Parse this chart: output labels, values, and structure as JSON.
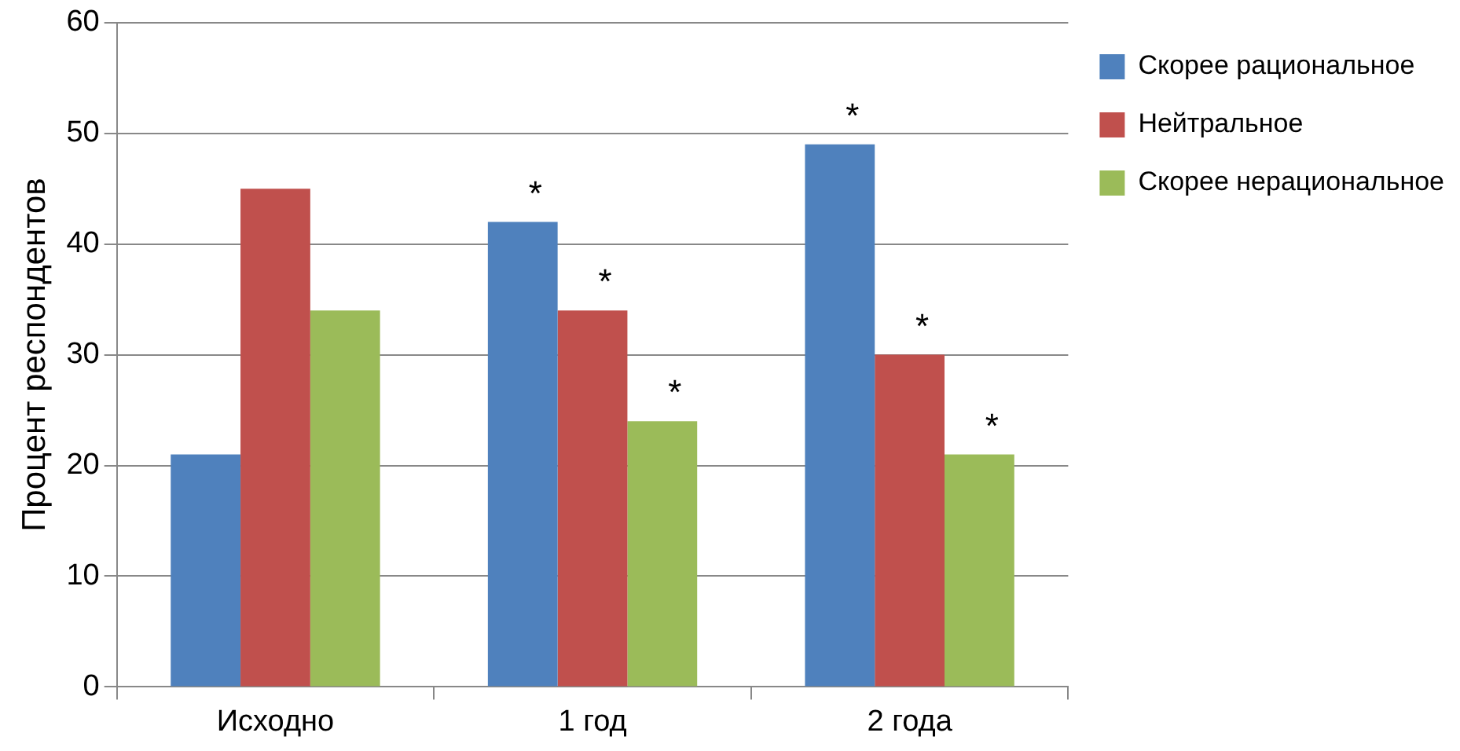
{
  "chart_data": {
    "type": "bar",
    "ylabel": "Процент респондентов",
    "categories": [
      "Исходно",
      "1 год",
      "2 года"
    ],
    "series": [
      {
        "name": "Скорее рациональное",
        "color": "#4f81bd",
        "values": [
          21,
          42,
          49
        ],
        "value_labels": [
          null,
          "*",
          "*"
        ]
      },
      {
        "name": "Нейтральное",
        "color": "#c0504d",
        "values": [
          45,
          34,
          30
        ],
        "value_labels": [
          null,
          "*",
          "*"
        ]
      },
      {
        "name": "Скорее нерациональное",
        "color": "#9bbb59",
        "values": [
          34,
          24,
          21
        ],
        "value_labels": [
          null,
          "*",
          "*"
        ]
      }
    ],
    "ylim": [
      0,
      60
    ],
    "yticks": [
      0,
      10,
      20,
      30,
      40,
      50,
      60
    ],
    "grid": "y",
    "legend": "right"
  }
}
